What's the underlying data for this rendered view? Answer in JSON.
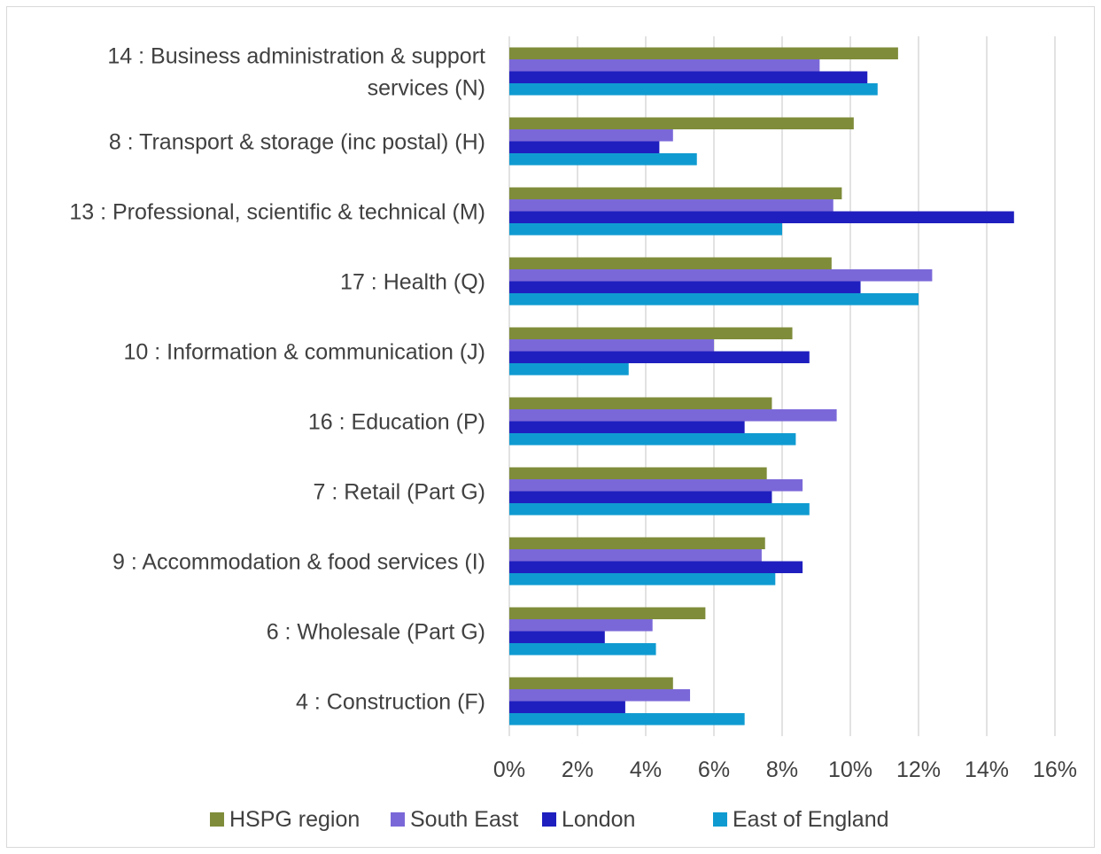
{
  "chart_data": {
    "type": "bar",
    "orientation": "horizontal",
    "categories": [
      "14 : Business administration & support services (N)",
      "8 : Transport & storage (inc postal) (H)",
      "13 : Professional, scientific & technical (M)",
      "17 : Health (Q)",
      "10 : Information & communication (J)",
      "16 : Education (P)",
      "7 : Retail (Part G)",
      "9 : Accommodation & food services (I)",
      "6 : Wholesale (Part G)",
      "4 : Construction (F)"
    ],
    "category_lines": [
      [
        "14 : Business administration & support",
        "services (N)"
      ],
      [
        "8 : Transport & storage (inc postal) (H)"
      ],
      [
        "13 : Professional, scientific & technical (M)"
      ],
      [
        "17 : Health (Q)"
      ],
      [
        "10 : Information & communication (J)"
      ],
      [
        "16 : Education (P)"
      ],
      [
        "7 : Retail (Part G)"
      ],
      [
        "9 : Accommodation & food services (I)"
      ],
      [
        "6 : Wholesale (Part G)"
      ],
      [
        "4 : Construction (F)"
      ]
    ],
    "series": [
      {
        "name": "HSPG region",
        "color": "#7f8c3a",
        "values": [
          11.4,
          10.1,
          9.75,
          9.45,
          8.3,
          7.7,
          7.55,
          7.5,
          5.75,
          4.8
        ]
      },
      {
        "name": "South East",
        "color": "#7b68d8",
        "values": [
          9.1,
          4.8,
          9.5,
          12.4,
          6.0,
          9.6,
          8.6,
          7.4,
          4.2,
          5.3
        ]
      },
      {
        "name": "London",
        "color": "#1f1fbf",
        "values": [
          10.5,
          4.4,
          14.8,
          10.3,
          8.8,
          6.9,
          7.7,
          8.6,
          2.8,
          3.4
        ]
      },
      {
        "name": "East of England",
        "color": "#0f9bd1",
        "values": [
          10.8,
          5.5,
          8.0,
          12.0,
          3.5,
          8.4,
          8.8,
          7.8,
          4.3,
          6.9
        ]
      }
    ],
    "x_ticks": [
      "0%",
      "2%",
      "4%",
      "6%",
      "8%",
      "10%",
      "12%",
      "14%",
      "16%"
    ],
    "xlim": [
      0,
      16
    ],
    "title": "",
    "xlabel": "",
    "ylabel": "",
    "grid": true,
    "legend_position": "bottom"
  }
}
